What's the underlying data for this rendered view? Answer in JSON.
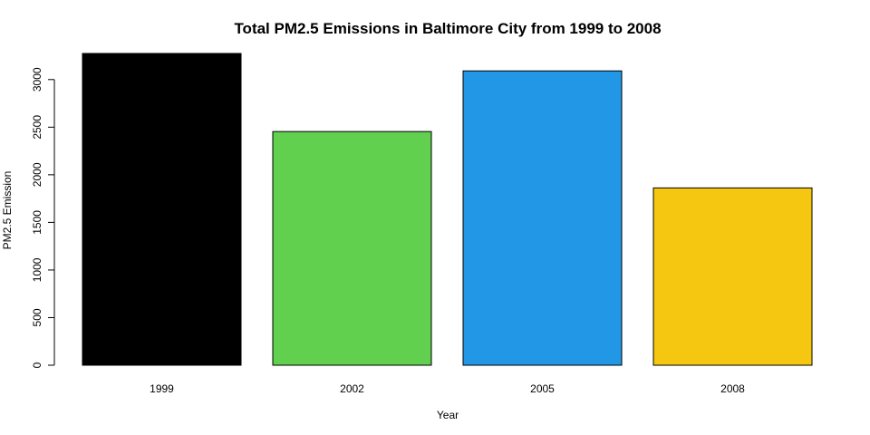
{
  "chart_data": {
    "type": "bar",
    "title": "Total PM2.5 Emissions in Baltimore City from 1999 to 2008",
    "xlabel": "Year",
    "ylabel": "PM2.5 Emission",
    "categories": [
      "1999",
      "2002",
      "2005",
      "2008"
    ],
    "values": [
      3274,
      2454,
      3091,
      1862
    ],
    "colors": [
      "#000000",
      "#61D04F",
      "#2297E6",
      "#F5C710"
    ],
    "ylim": [
      0,
      3274
    ],
    "yticks": [
      0,
      500,
      1000,
      1500,
      2000,
      2500,
      3000
    ],
    "ytick_labels": [
      "0",
      "500",
      "1000",
      "1500",
      "2000",
      "2500",
      "3000"
    ],
    "grid": false,
    "legend": "none"
  }
}
